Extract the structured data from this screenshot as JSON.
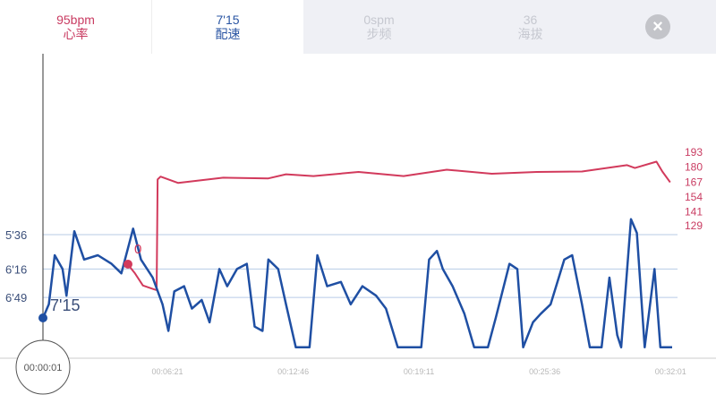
{
  "tabs": [
    {
      "value": "95bpm",
      "label": "心率",
      "color": "#c93c62",
      "active": true
    },
    {
      "value": "7'15",
      "label": "配速",
      "color": "#2a55a3",
      "active": true
    },
    {
      "value": "0spm",
      "label": "步频",
      "color": "#c6c8d0",
      "active": false
    },
    {
      "value": "36",
      "label": "海拔",
      "color": "#c6c8d0",
      "active": false
    }
  ],
  "close_icon": "close-circle-icon",
  "cursor": {
    "time": "00:00:01",
    "pace_label": "7'15",
    "hr_marker_label": "0"
  },
  "chart_data": {
    "type": "line",
    "x_unit": "minutes",
    "x_ticks": [
      "00:06:21",
      "00:12:46",
      "00:19:11",
      "00:25:36",
      "00:32:01"
    ],
    "x_tick_values": [
      6.35,
      12.77,
      19.18,
      25.6,
      32.02
    ],
    "pace_gridlines": [
      {
        "label": "5'36",
        "value": 336
      },
      {
        "label": "6'16",
        "value": 376
      },
      {
        "label": "6'49",
        "value": 409
      }
    ],
    "hr_ticks": [
      "193",
      "180",
      "167",
      "154",
      "141",
      "129"
    ],
    "hr_tick_values": [
      193,
      180,
      167,
      154,
      141,
      129
    ],
    "colors": {
      "pace": "#1f4fa3",
      "hr": "#d23a5c",
      "grid": "#b7cbe6"
    },
    "pace_series": {
      "t": [
        0,
        0.3,
        0.6,
        1.0,
        1.2,
        1.6,
        2.1,
        2.8,
        3.5,
        4.0,
        4.6,
        5.0,
        5.6,
        6.1,
        6.4,
        6.7,
        7.2,
        7.6,
        8.1,
        8.5,
        9.0,
        9.4,
        9.9,
        10.4,
        10.8,
        11.2,
        11.5,
        12.0,
        12.4,
        12.9,
        13.6,
        14.0,
        14.5,
        15.2,
        15.7,
        16.3,
        17.0,
        17.5,
        18.1,
        19.3,
        19.7,
        20.1,
        20.4,
        20.9,
        21.5,
        22.0,
        22.7,
        23.1,
        23.8,
        24.2,
        24.5,
        25.0,
        25.4,
        25.9,
        26.6,
        27.0,
        27.5,
        27.9,
        28.5,
        28.9,
        29.3,
        29.5,
        30.0,
        30.3,
        30.7,
        31.2,
        31.5,
        32.1
      ],
      "pace_sec": [
        433,
        417,
        360,
        376,
        407,
        332,
        365,
        360,
        370,
        381,
        329,
        365,
        386,
        417,
        448,
        402,
        396,
        422,
        412,
        438,
        376,
        396,
        376,
        370,
        443,
        448,
        365,
        376,
        417,
        467,
        467,
        360,
        396,
        391,
        417,
        396,
        407,
        422,
        467,
        467,
        365,
        355,
        376,
        396,
        428,
        467,
        467,
        433,
        370,
        376,
        467,
        438,
        428,
        417,
        365,
        360,
        417,
        467,
        467,
        386,
        453,
        467,
        318,
        334,
        467,
        376,
        467,
        467
      ]
    },
    "hr_series": {
      "t": [
        4.3,
        4.7,
        5.1,
        5.7,
        5.8,
        5.85,
        6.0,
        6.9,
        9.2,
        11.5,
        12.4,
        13.8,
        16.1,
        18.4,
        20.6,
        22.9,
        25.2,
        27.5,
        29.8,
        30.2,
        31.3,
        31.6,
        32.0
      ],
      "bpm": [
        95,
        88,
        76,
        74,
        72,
        170,
        171,
        167,
        170,
        171,
        173,
        173,
        175,
        173,
        177,
        175,
        175,
        177,
        181,
        180,
        184,
        177,
        166
      ]
    }
  }
}
